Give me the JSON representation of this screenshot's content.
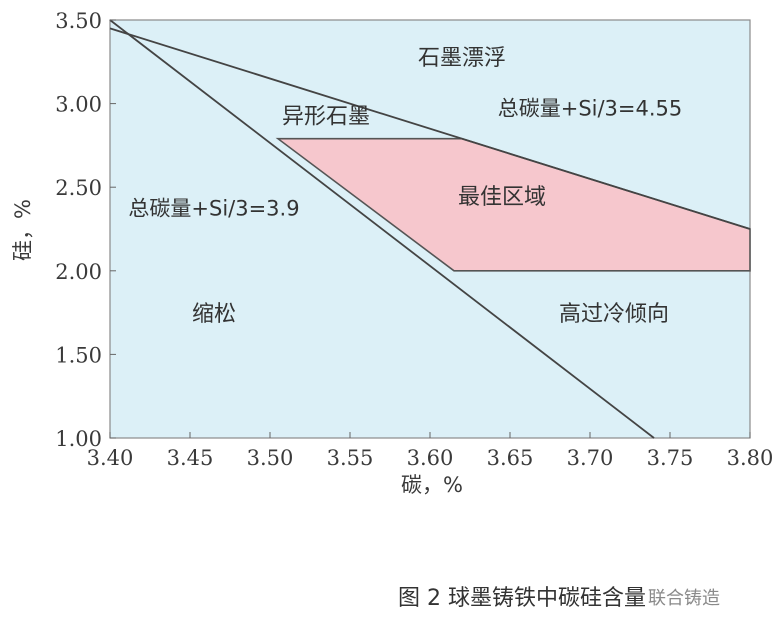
{
  "chart_data": {
    "type": "area",
    "xlabel": "碳，%",
    "ylabel": "硅，%",
    "xlim": [
      3.4,
      3.8
    ],
    "ylim": [
      1.0,
      3.5
    ],
    "x_ticks": [
      "3.40",
      "3.45",
      "3.50",
      "3.55",
      "3.60",
      "3.65",
      "3.70",
      "3.75",
      "3.80"
    ],
    "y_ticks": [
      "1.00",
      "1.50",
      "2.00",
      "2.50",
      "3.00",
      "3.50"
    ],
    "grid": false,
    "lines": [
      {
        "name": "总碳量+Si/3=3.9",
        "points": [
          [
            3.4,
            3.5
          ],
          [
            3.74,
            1.0
          ]
        ]
      },
      {
        "name": "总碳量+Si/3=4.55",
        "points": [
          [
            3.4,
            3.45
          ],
          [
            3.8,
            2.25
          ]
        ]
      }
    ],
    "optimal_region": {
      "label": "最佳区域",
      "polygon": [
        [
          3.505,
          2.79
        ],
        [
          3.62,
          2.79
        ],
        [
          3.8,
          2.25
        ],
        [
          3.8,
          2.0
        ],
        [
          3.615,
          2.0
        ]
      ],
      "color": "#f6c7cd"
    },
    "regions": [
      {
        "label": "石墨漂浮",
        "x": 3.62,
        "y": 3.23
      },
      {
        "label": "异形石墨",
        "x": 3.535,
        "y": 2.88
      },
      {
        "label": "缩松",
        "x": 3.465,
        "y": 1.7
      },
      {
        "label": "高过冷倾向",
        "x": 3.715,
        "y": 1.7
      }
    ],
    "annotations": [
      {
        "label": "总碳量+Si/3=4.55",
        "x": 3.7,
        "y": 2.93
      },
      {
        "label": "总碳量+Si/3=3.9",
        "x": 3.465,
        "y": 2.33
      }
    ],
    "plot_background": "#dcf0f7"
  },
  "caption": "图 2 球墨铸铁中碳硅含量",
  "watermark": "联合铸造"
}
